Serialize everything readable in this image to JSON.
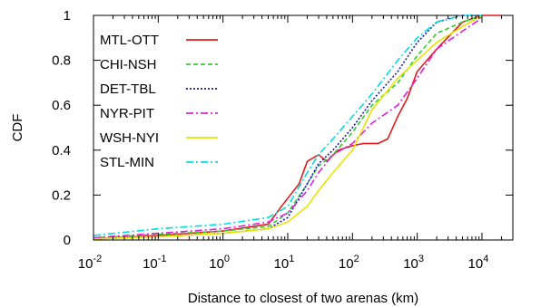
{
  "chart_data": {
    "type": "line",
    "xlabel": "Distance to closest of two arenas (km)",
    "ylabel": "CDF",
    "x_scale": "log",
    "xlim": [
      0.01,
      30000
    ],
    "ylim": [
      0,
      1
    ],
    "x_ticks": [
      {
        "value": 0.01,
        "base": "10",
        "exp": "-2"
      },
      {
        "value": 0.1,
        "base": "10",
        "exp": "-1"
      },
      {
        "value": 1,
        "base": "10",
        "exp": "0"
      },
      {
        "value": 10,
        "base": "10",
        "exp": "1"
      },
      {
        "value": 100,
        "base": "10",
        "exp": "2"
      },
      {
        "value": 1000,
        "base": "10",
        "exp": "3"
      },
      {
        "value": 10000,
        "base": "10",
        "exp": "4"
      }
    ],
    "y_ticks": [
      {
        "value": 0,
        "label": "0"
      },
      {
        "value": 0.2,
        "label": "0.2"
      },
      {
        "value": 0.4,
        "label": "0.4"
      },
      {
        "value": 0.6,
        "label": "0.6"
      },
      {
        "value": 0.8,
        "label": "0.8"
      },
      {
        "value": 1,
        "label": "1"
      }
    ],
    "grid": false,
    "legend_position": "top-left",
    "series": [
      {
        "name": "MTL-OTT",
        "color": "#e41a1c",
        "dash": "solid",
        "points": [
          [
            0.01,
            0.005
          ],
          [
            0.1,
            0.02
          ],
          [
            1,
            0.04
          ],
          [
            5,
            0.07
          ],
          [
            8,
            0.15
          ],
          [
            15,
            0.25
          ],
          [
            20,
            0.35
          ],
          [
            30,
            0.38
          ],
          [
            40,
            0.35
          ],
          [
            60,
            0.4
          ],
          [
            100,
            0.42
          ],
          [
            150,
            0.43
          ],
          [
            250,
            0.43
          ],
          [
            350,
            0.45
          ],
          [
            500,
            0.55
          ],
          [
            700,
            0.63
          ],
          [
            1000,
            0.75
          ],
          [
            2000,
            0.85
          ],
          [
            5000,
            0.97
          ],
          [
            10000,
            1.0
          ],
          [
            20000,
            1.0
          ]
        ]
      },
      {
        "name": "CHI-NSH",
        "color": "#33cc33",
        "dash": "5,3",
        "points": [
          [
            0.01,
            0.01
          ],
          [
            0.1,
            0.025
          ],
          [
            1,
            0.04
          ],
          [
            5,
            0.06
          ],
          [
            10,
            0.12
          ],
          [
            20,
            0.25
          ],
          [
            30,
            0.33
          ],
          [
            50,
            0.38
          ],
          [
            100,
            0.48
          ],
          [
            200,
            0.6
          ],
          [
            500,
            0.7
          ],
          [
            1000,
            0.82
          ],
          [
            2000,
            0.92
          ],
          [
            5000,
            0.97
          ],
          [
            10000,
            1.0
          ]
        ]
      },
      {
        "name": "DET-TBL",
        "color": "#1a1aaa",
        "dash": "2,2",
        "points": [
          [
            0.01,
            0.005
          ],
          [
            0.1,
            0.015
          ],
          [
            1,
            0.03
          ],
          [
            5,
            0.05
          ],
          [
            10,
            0.1
          ],
          [
            20,
            0.25
          ],
          [
            30,
            0.34
          ],
          [
            50,
            0.4
          ],
          [
            100,
            0.5
          ],
          [
            200,
            0.62
          ],
          [
            500,
            0.75
          ],
          [
            1000,
            0.88
          ],
          [
            2000,
            0.97
          ],
          [
            5000,
            1.0
          ],
          [
            10000,
            1.0
          ]
        ]
      },
      {
        "name": "NYR-PIT",
        "color": "#e020e0",
        "dash": "8,3,2,3",
        "points": [
          [
            0.01,
            0.01
          ],
          [
            0.1,
            0.03
          ],
          [
            1,
            0.05
          ],
          [
            5,
            0.08
          ],
          [
            10,
            0.12
          ],
          [
            20,
            0.22
          ],
          [
            30,
            0.3
          ],
          [
            50,
            0.38
          ],
          [
            100,
            0.43
          ],
          [
            200,
            0.52
          ],
          [
            500,
            0.6
          ],
          [
            1000,
            0.72
          ],
          [
            2000,
            0.85
          ],
          [
            5000,
            0.93
          ],
          [
            9000,
            0.98
          ],
          [
            10000,
            1.0
          ]
        ]
      },
      {
        "name": "WSH-NYI",
        "color": "#e6e600",
        "dash": "solid",
        "points": [
          [
            0.01,
            0.005
          ],
          [
            0.1,
            0.015
          ],
          [
            1,
            0.03
          ],
          [
            5,
            0.05
          ],
          [
            10,
            0.08
          ],
          [
            20,
            0.15
          ],
          [
            30,
            0.22
          ],
          [
            50,
            0.3
          ],
          [
            100,
            0.4
          ],
          [
            200,
            0.58
          ],
          [
            500,
            0.72
          ],
          [
            1000,
            0.8
          ],
          [
            2000,
            0.88
          ],
          [
            5000,
            0.95
          ],
          [
            10000,
            1.0
          ]
        ]
      },
      {
        "name": "STL-MIN",
        "color": "#00dddd",
        "dash": "8,3,2,3",
        "points": [
          [
            0.01,
            0.02
          ],
          [
            0.1,
            0.05
          ],
          [
            1,
            0.07
          ],
          [
            5,
            0.1
          ],
          [
            10,
            0.15
          ],
          [
            20,
            0.3
          ],
          [
            30,
            0.38
          ],
          [
            50,
            0.45
          ],
          [
            100,
            0.55
          ],
          [
            200,
            0.65
          ],
          [
            500,
            0.8
          ],
          [
            1000,
            0.9
          ],
          [
            2000,
            0.97
          ],
          [
            5000,
            1.0
          ],
          [
            10000,
            1.0
          ]
        ]
      }
    ]
  }
}
